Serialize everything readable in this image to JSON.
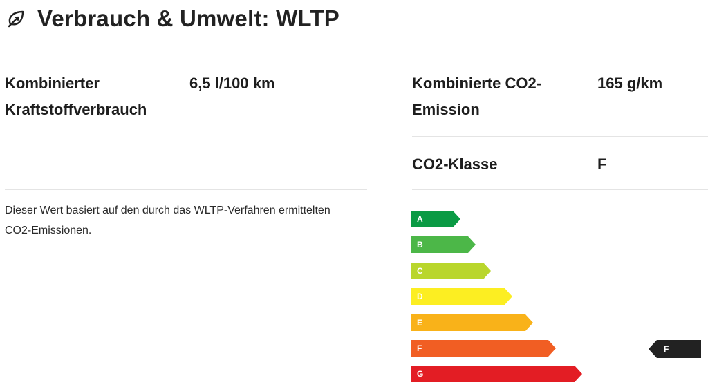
{
  "header": {
    "title": "Verbrauch & Umwelt: WLTP",
    "icon": "leaf-icon"
  },
  "left": {
    "fuel_label_line1": "Kombinierter",
    "fuel_label_line2": "Kraftstoffverbrauch",
    "fuel_value": "6,5 l/100 km",
    "note_line1": "Dieser Wert basiert auf den durch das WLTP-Verfahren ermittelten",
    "note_line2": "CO2-Emissionen."
  },
  "right": {
    "co2_label_line1": "Kombinierte CO2-",
    "co2_label_line2": "Emission",
    "co2_value": "165 g/km",
    "class_label": "CO2-Klasse",
    "class_value": "F"
  },
  "efficiency": {
    "classes": [
      {
        "letter": "A",
        "color": "#0a9a44"
      },
      {
        "letter": "B",
        "color": "#4cb748"
      },
      {
        "letter": "C",
        "color": "#b9d62c"
      },
      {
        "letter": "D",
        "color": "#fcee22"
      },
      {
        "letter": "E",
        "color": "#f9b219"
      },
      {
        "letter": "F",
        "color": "#f15e23"
      },
      {
        "letter": "G",
        "color": "#e31d24"
      }
    ],
    "selected": "F",
    "marker_color": "#222222"
  }
}
